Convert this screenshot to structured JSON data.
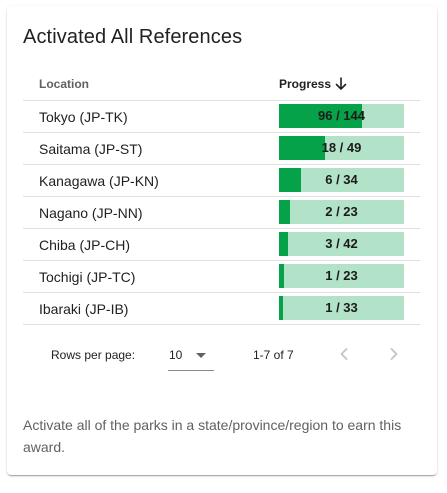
{
  "card": {
    "title": "Activated All References",
    "footer": "Activate all of the parks in a state/province/region to earn this award."
  },
  "table": {
    "headers": {
      "location": "Location",
      "progress": "Progress"
    },
    "sort_icon": "arrow-down-icon",
    "rows": [
      {
        "location": "Tokyo (JP-TK)",
        "activated": 96,
        "total": 144,
        "label": "96 / 144"
      },
      {
        "location": "Saitama (JP-ST)",
        "activated": 18,
        "total": 49,
        "label": "18 / 49"
      },
      {
        "location": "Kanagawa (JP-KN)",
        "activated": 6,
        "total": 34,
        "label": "6 / 34"
      },
      {
        "location": "Nagano (JP-NN)",
        "activated": 2,
        "total": 23,
        "label": "2 / 23"
      },
      {
        "location": "Chiba (JP-CH)",
        "activated": 3,
        "total": 42,
        "label": "3 / 42"
      },
      {
        "location": "Tochigi (JP-TC)",
        "activated": 1,
        "total": 23,
        "label": "1 / 23"
      },
      {
        "location": "Ibaraki (JP-IB)",
        "activated": 1,
        "total": 33,
        "label": "1 / 33"
      }
    ]
  },
  "pagination": {
    "rows_per_page_label": "Rows per page:",
    "rows_per_page_value": "10",
    "range": "1-7 of 7",
    "prev_icon": "chevron-left-icon",
    "next_icon": "chevron-right-icon"
  },
  "colors": {
    "bar_fill": "#05a24a",
    "bar_track": "#b2e2c8"
  }
}
